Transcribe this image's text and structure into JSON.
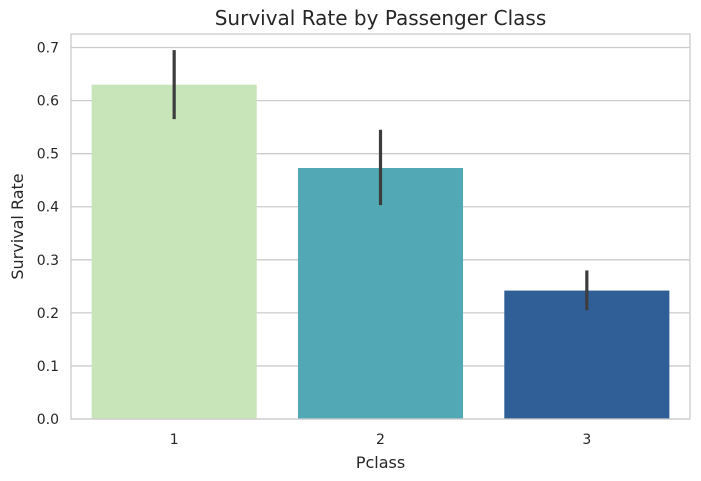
{
  "chart_data": {
    "type": "bar",
    "title": "Survival Rate by Passenger Class",
    "xlabel": "Pclass",
    "ylabel": "Survival Rate",
    "categories": [
      "1",
      "2",
      "3"
    ],
    "values": [
      0.63,
      0.473,
      0.242
    ],
    "error_bars": [
      [
        0.565,
        0.695
      ],
      [
        0.403,
        0.545
      ],
      [
        0.205,
        0.28
      ]
    ],
    "colors": [
      "#c7e5b9",
      "#52a9b5",
      "#305f97"
    ],
    "ylim": [
      0,
      0.7
    ],
    "yticks": [
      "0.0",
      "0.1",
      "0.2",
      "0.3",
      "0.4",
      "0.5",
      "0.6",
      "0.7"
    ],
    "grid": true,
    "legend": "none"
  }
}
